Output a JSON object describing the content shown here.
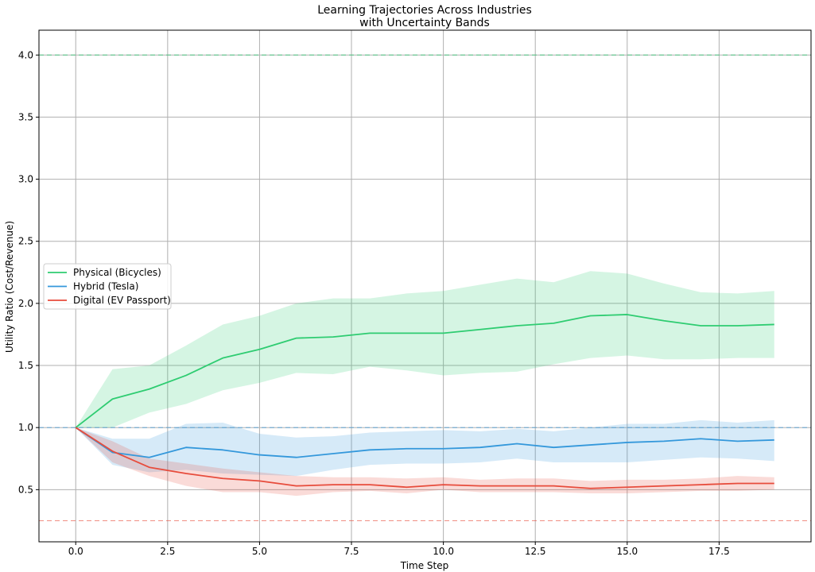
{
  "chart_data": {
    "type": "line",
    "title": [
      "Learning Trajectories Across Industries",
      "with Uncertainty Bands"
    ],
    "xlabel": "Time Step",
    "ylabel": "Utility Ratio (Cost/Revenue)",
    "xlim": [
      -1,
      20
    ],
    "ylim": [
      0.08,
      4.2
    ],
    "xticks": [
      0.0,
      2.5,
      5.0,
      7.5,
      10.0,
      12.5,
      15.0,
      17.5
    ],
    "xtick_labels": [
      "0.0",
      "2.5",
      "5.0",
      "7.5",
      "10.0",
      "12.5",
      "15.0",
      "17.5"
    ],
    "yticks": [
      0.5,
      1.0,
      1.5,
      2.0,
      2.5,
      3.0,
      3.5,
      4.0
    ],
    "ytick_labels": [
      "0.5",
      "1.0",
      "1.5",
      "2.0",
      "2.5",
      "3.0",
      "3.5",
      "4.0"
    ],
    "grid": true,
    "legend_position": "center-left",
    "x": [
      0,
      1,
      2,
      3,
      4,
      5,
      6,
      7,
      8,
      9,
      10,
      11,
      12,
      13,
      14,
      15,
      16,
      17,
      18,
      19
    ],
    "series": [
      {
        "name": "Physical (Bicycles)",
        "color": "#2ecc71",
        "values": [
          1.0,
          1.23,
          1.31,
          1.42,
          1.56,
          1.63,
          1.72,
          1.73,
          1.76,
          1.76,
          1.76,
          1.79,
          1.82,
          1.84,
          1.9,
          1.91,
          1.86,
          1.82,
          1.82,
          1.83
        ],
        "upper": [
          1.0,
          1.47,
          1.5,
          1.66,
          1.83,
          1.9,
          2.0,
          2.04,
          2.04,
          2.08,
          2.1,
          2.15,
          2.2,
          2.17,
          2.26,
          2.24,
          2.16,
          2.09,
          2.08,
          2.1
        ],
        "lower": [
          1.0,
          1.0,
          1.12,
          1.19,
          1.3,
          1.36,
          1.44,
          1.43,
          1.49,
          1.46,
          1.42,
          1.44,
          1.45,
          1.51,
          1.56,
          1.58,
          1.55,
          1.55,
          1.56,
          1.56
        ]
      },
      {
        "name": "Hybrid (Tesla)",
        "color": "#3498db",
        "values": [
          1.0,
          0.8,
          0.76,
          0.84,
          0.82,
          0.78,
          0.76,
          0.79,
          0.82,
          0.83,
          0.83,
          0.84,
          0.87,
          0.84,
          0.86,
          0.88,
          0.89,
          0.91,
          0.89,
          0.9
        ],
        "upper": [
          1.0,
          0.91,
          0.91,
          1.03,
          1.04,
          0.95,
          0.92,
          0.93,
          0.96,
          0.97,
          0.98,
          0.97,
          0.99,
          0.97,
          1.0,
          1.03,
          1.03,
          1.06,
          1.04,
          1.06
        ],
        "lower": [
          1.0,
          0.7,
          0.64,
          0.66,
          0.63,
          0.62,
          0.61,
          0.66,
          0.7,
          0.71,
          0.71,
          0.72,
          0.75,
          0.72,
          0.72,
          0.72,
          0.74,
          0.76,
          0.75,
          0.73
        ]
      },
      {
        "name": "Digital (EV Passport)",
        "color": "#e74c3c",
        "values": [
          1.0,
          0.81,
          0.68,
          0.63,
          0.59,
          0.57,
          0.53,
          0.54,
          0.54,
          0.52,
          0.54,
          0.53,
          0.53,
          0.53,
          0.51,
          0.52,
          0.53,
          0.54,
          0.55,
          0.55
        ],
        "upper": [
          1.0,
          0.89,
          0.75,
          0.71,
          0.67,
          0.64,
          0.61,
          0.6,
          0.6,
          0.59,
          0.6,
          0.58,
          0.59,
          0.59,
          0.57,
          0.58,
          0.58,
          0.59,
          0.61,
          0.6
        ],
        "lower": [
          1.0,
          0.72,
          0.61,
          0.53,
          0.48,
          0.48,
          0.45,
          0.48,
          0.49,
          0.47,
          0.5,
          0.48,
          0.48,
          0.48,
          0.47,
          0.47,
          0.48,
          0.49,
          0.49,
          0.5
        ]
      }
    ],
    "reference_lines": [
      {
        "y": 4.0,
        "color": "#2ecc71"
      },
      {
        "y": 1.0,
        "color": "#3498db"
      },
      {
        "y": 0.25,
        "color": "#e74c3c"
      }
    ]
  }
}
